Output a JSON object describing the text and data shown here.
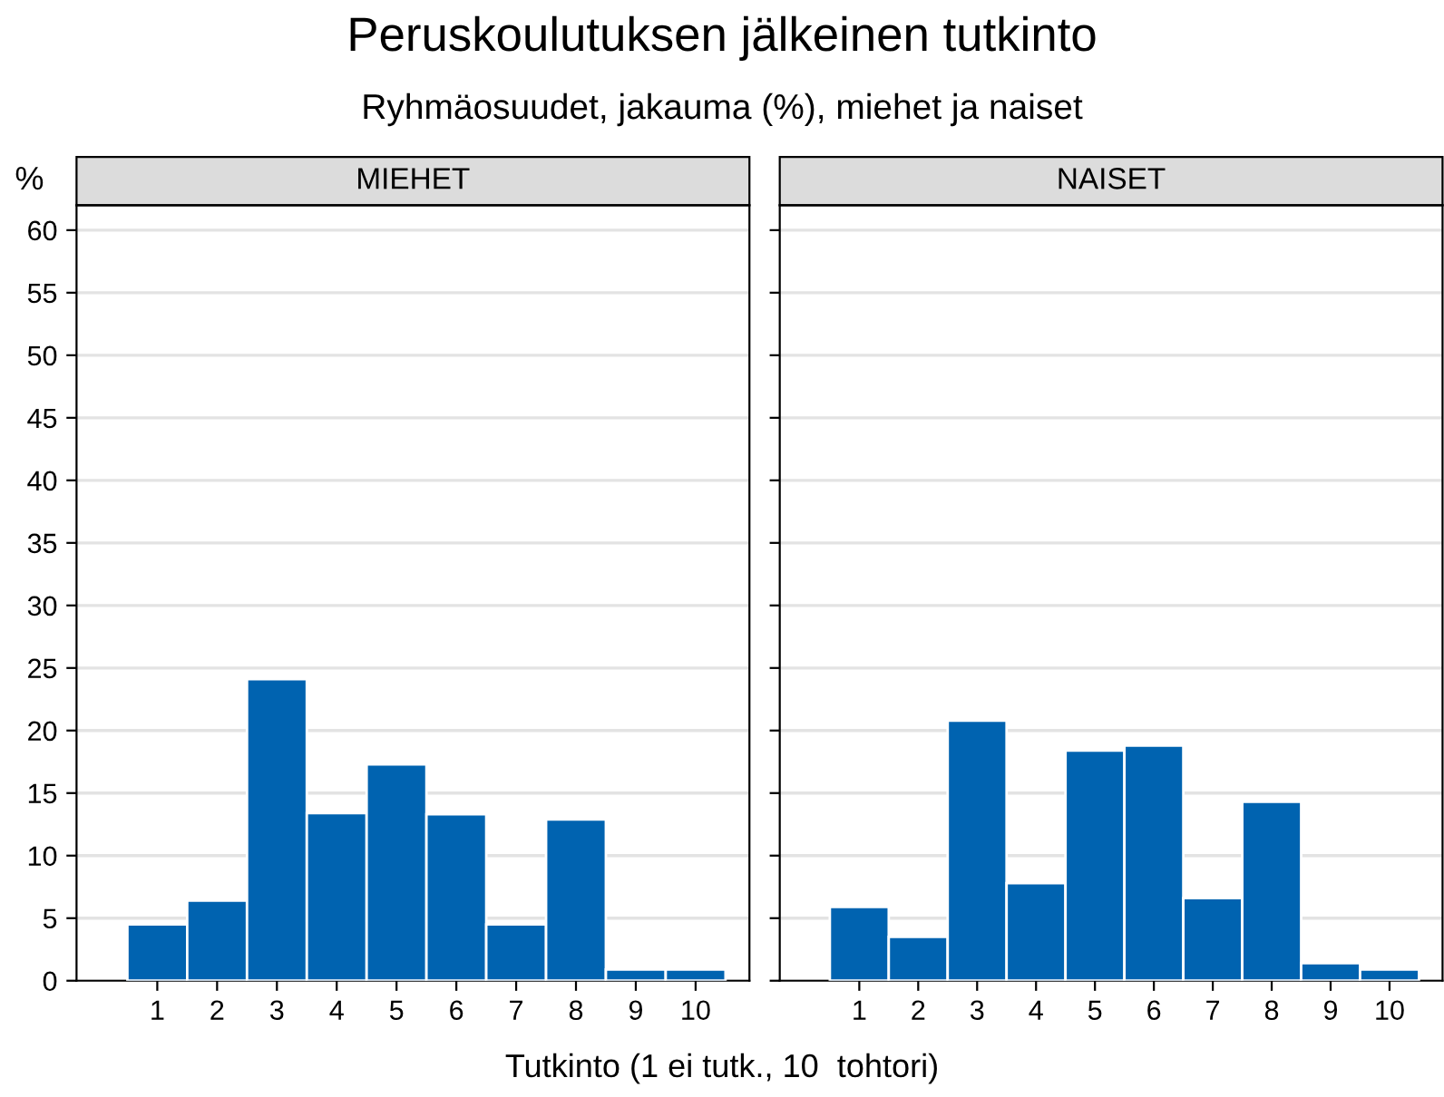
{
  "chart_data": [
    {
      "type": "bar",
      "title": "MIEHET",
      "annotations": [
        "Peruskoulutuksen jälkeinen tutkinto",
        "Ryhmäosuudet, jakauma (%), miehet ja naiset"
      ],
      "xlabel": "Tutkinto (1 ei tutk., 10  tohtori)",
      "ylabel": "%",
      "x": [
        1,
        2,
        3,
        4,
        5,
        6,
        7,
        8,
        9,
        10
      ],
      "series": [
        {
          "color": "#0063b0",
          "values": [
            4.5,
            6.4,
            24.1,
            13.4,
            17.3,
            13.3,
            4.5,
            12.9,
            0.9,
            0.9
          ]
        }
      ],
      "xlim": [
        -0.35,
        10.9
      ],
      "xticks": [
        1,
        2,
        3,
        4,
        5,
        6,
        7,
        8,
        9,
        10
      ],
      "ylim": [
        0,
        62
      ],
      "yticks": [
        0,
        5,
        10,
        15,
        20,
        25,
        30,
        35,
        40,
        45,
        50,
        55,
        60
      ],
      "grid": "y"
    },
    {
      "type": "bar",
      "title": "NAISET",
      "x": [
        1,
        2,
        3,
        4,
        5,
        6,
        7,
        8,
        9,
        10
      ],
      "series": [
        {
          "color": "#0063b0",
          "values": [
            5.9,
            3.5,
            20.8,
            7.8,
            18.4,
            18.8,
            6.6,
            14.3,
            1.4,
            0.9
          ]
        }
      ],
      "xlim": [
        -0.35,
        10.9
      ],
      "xticks": [
        1,
        2,
        3,
        4,
        5,
        6,
        7,
        8,
        9,
        10
      ],
      "ylim": [
        0,
        62
      ],
      "yticks": [
        0,
        5,
        10,
        15,
        20,
        25,
        30,
        35,
        40,
        45,
        50,
        55,
        60
      ],
      "grid": "y",
      "tick_labels": "x"
    }
  ]
}
